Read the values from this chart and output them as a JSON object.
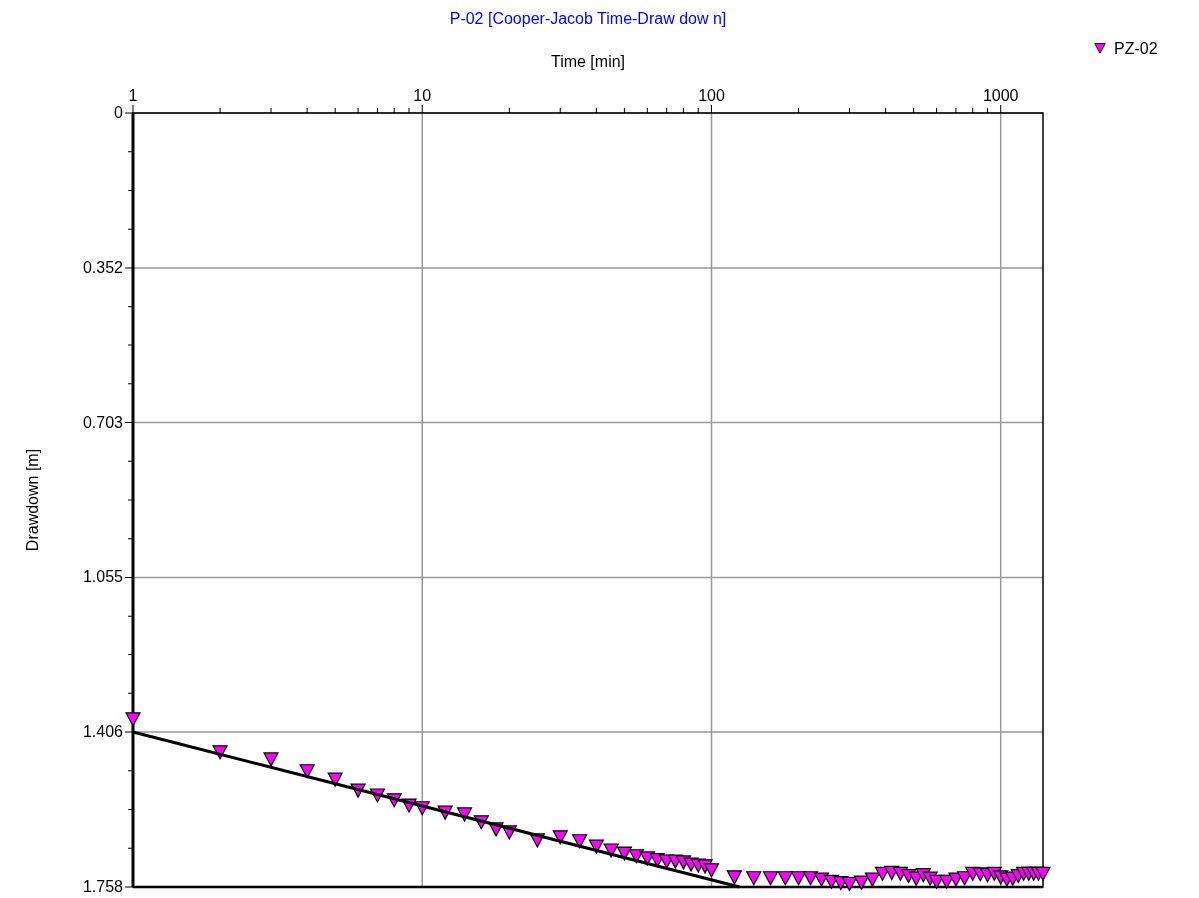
{
  "chart_data": {
    "type": "scatter",
    "title": "P-02 [Cooper-Jacob Time-Draw dow n]",
    "xlabel": "Time [min]",
    "ylabel": "Drawdown [m]",
    "log": "x",
    "xlim": [
      1,
      1400
    ],
    "ylim": [
      1.758,
      0
    ],
    "xticks": [
      1,
      {
        "value": 2,
        "label": null
      },
      {
        "value": 3,
        "label": null
      },
      {
        "value": 4,
        "label": null
      },
      {
        "value": 5,
        "label": null
      },
      {
        "value": 6,
        "label": null
      },
      {
        "value": 7,
        "label": null
      },
      {
        "value": 8,
        "label": null
      },
      {
        "value": 9,
        "label": null
      },
      10,
      {
        "value": 20,
        "label": null
      },
      {
        "value": 30,
        "label": null
      },
      {
        "value": 40,
        "label": null
      },
      {
        "value": 50,
        "label": null
      },
      {
        "value": 60,
        "label": null
      },
      {
        "value": 70,
        "label": null
      },
      {
        "value": 80,
        "label": null
      },
      {
        "value": 90,
        "label": null
      },
      100,
      {
        "value": 200,
        "label": null
      },
      {
        "value": 300,
        "label": null
      },
      {
        "value": 400,
        "label": null
      },
      {
        "value": 500,
        "label": null
      },
      {
        "value": 600,
        "label": null
      },
      {
        "value": 700,
        "label": null
      },
      {
        "value": 800,
        "label": null
      },
      {
        "value": 900,
        "label": null
      },
      1000
    ],
    "yticks": [
      0,
      {
        "value": 0.088,
        "label": null
      },
      {
        "value": 0.176,
        "label": null
      },
      {
        "value": 0.264,
        "label": null
      },
      0.352,
      {
        "value": 0.44,
        "label": null
      },
      {
        "value": 0.527,
        "label": null
      },
      {
        "value": 0.615,
        "label": null
      },
      0.703,
      {
        "value": 0.791,
        "label": null
      },
      {
        "value": 0.879,
        "label": null
      },
      {
        "value": 0.967,
        "label": null
      },
      1.055,
      {
        "value": 1.143,
        "label": null
      },
      {
        "value": 1.23,
        "label": null
      },
      {
        "value": 1.318,
        "label": null
      },
      1.406,
      {
        "value": 1.494,
        "label": null
      },
      {
        "value": 1.582,
        "label": null
      },
      {
        "value": 1.67,
        "label": null
      },
      1.758
    ],
    "grid": true,
    "legend": "top right",
    "series": [
      {
        "name": "PZ-02",
        "color": "#ff00ff",
        "marker": "triangle",
        "x": [
          1,
          2,
          3,
          4,
          5,
          6,
          7,
          8,
          9,
          10,
          12,
          14,
          16,
          18,
          20,
          25,
          30,
          35,
          40,
          45,
          50,
          55,
          60,
          65,
          70,
          75,
          80,
          85,
          90,
          95,
          100,
          120,
          140,
          160,
          180,
          200,
          220,
          240,
          260,
          280,
          300,
          330,
          360,
          390,
          420,
          450,
          480,
          510,
          540,
          570,
          600,
          650,
          700,
          750,
          800,
          850,
          900,
          950,
          1000,
          1050,
          1100,
          1150,
          1200,
          1250,
          1300,
          1350,
          1400
        ],
        "values": [
          1.376,
          1.451,
          1.467,
          1.494,
          1.513,
          1.538,
          1.549,
          1.56,
          1.572,
          1.578,
          1.588,
          1.592,
          1.61,
          1.626,
          1.633,
          1.651,
          1.644,
          1.653,
          1.665,
          1.674,
          1.681,
          1.687,
          1.692,
          1.696,
          1.699,
          1.699,
          1.701,
          1.706,
          1.708,
          1.71,
          1.719,
          1.735,
          1.737,
          1.737,
          1.737,
          1.737,
          1.737,
          1.74,
          1.745,
          1.748,
          1.75,
          1.747,
          1.74,
          1.727,
          1.725,
          1.727,
          1.732,
          1.738,
          1.73,
          1.738,
          1.745,
          1.745,
          1.74,
          1.737,
          1.727,
          1.728,
          1.73,
          1.727,
          1.735,
          1.74,
          1.738,
          1.732,
          1.727,
          1.727,
          1.727,
          1.727,
          1.727
        ]
      },
      {
        "type": "line",
        "marker": "none",
        "color": "#000000",
        "x": [
          1,
          125
        ],
        "values": [
          1.406,
          1.758
        ]
      }
    ]
  }
}
